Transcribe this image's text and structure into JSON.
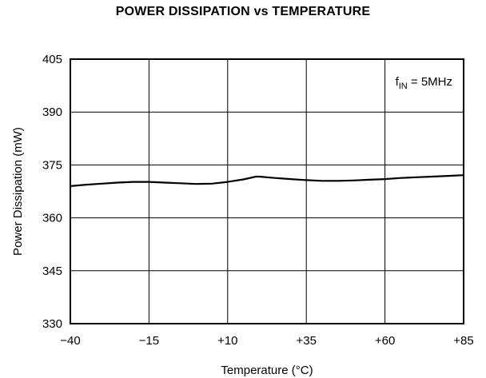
{
  "chart_data": {
    "type": "line",
    "title": "POWER DISSIPATION vs TEMPERATURE",
    "xlabel": "Temperature (°C)",
    "ylabel": "Power Dissipation (mW)",
    "xlim": [
      -40,
      85
    ],
    "ylim": [
      330,
      405
    ],
    "x_ticks": [
      -40,
      -15,
      10,
      35,
      60,
      85
    ],
    "x_tick_labels": [
      "−40",
      "−15",
      "+10",
      "+35",
      "+60",
      "+85"
    ],
    "y_ticks": [
      330,
      345,
      360,
      375,
      390,
      405
    ],
    "y_tick_labels": [
      "330",
      "345",
      "360",
      "375",
      "390",
      "405"
    ],
    "grid": true,
    "annotation": {
      "main": "f",
      "subscript": "IN",
      "rest": " = 5MHz"
    },
    "series": [
      {
        "color": "#000000",
        "x": [
          -40,
          -35,
          -30,
          -25,
          -20,
          -15,
          -10,
          -5,
          0,
          5,
          10,
          15,
          19,
          20,
          25,
          30,
          35,
          40,
          45,
          50,
          55,
          60,
          65,
          70,
          75,
          80,
          85
        ],
        "y": [
          369.0,
          369.4,
          369.7,
          370.0,
          370.2,
          370.2,
          370.0,
          369.8,
          369.6,
          369.7,
          370.2,
          370.9,
          371.7,
          371.7,
          371.3,
          371.0,
          370.7,
          370.5,
          370.5,
          370.6,
          370.8,
          371.0,
          371.3,
          371.5,
          371.7,
          371.9,
          372.1
        ]
      }
    ]
  }
}
